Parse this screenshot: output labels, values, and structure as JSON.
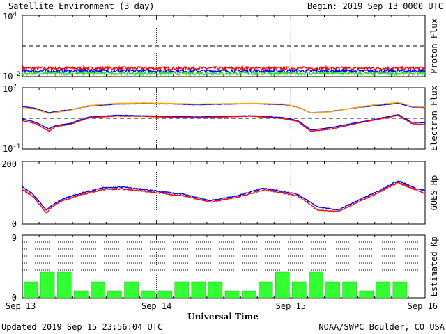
{
  "header": {
    "title": "Satellite Environment (3 day)",
    "begin": "Begin:  2019 Sep 13 0000 UTC"
  },
  "footer": {
    "updated": "Updated 2019 Sep 15 23:56:04 UTC",
    "credit": "NOAA/SWPC Boulder, CO USA"
  },
  "x_axis": {
    "title": "Universal Time",
    "tick_labels": [
      "Sep 13",
      "Sep 14",
      "Sep 15",
      "Sep 16"
    ],
    "range_days": [
      0,
      3
    ]
  },
  "colors": {
    "red": "#ff0000",
    "blue": "#0000ff",
    "green": "#22dd22",
    "orange": "#ffa500",
    "kp_bar": "#33ff33",
    "kp_bar_edge": "#22bb22"
  },
  "chart_data": [
    {
      "type": "line",
      "ylabel": "Proton Flux",
      "scale": "log",
      "ylim": [
        0.01,
        10000
      ],
      "tick_labels": [
        {
          "base": "10",
          "exp": "4"
        },
        {
          "base": "10",
          "exp": "-2"
        }
      ],
      "threshold": 10,
      "series": [
        {
          "color": "red",
          "level": 0.065,
          "noise": 0.15
        },
        {
          "color": "blue",
          "level": 0.035,
          "noise": 0.15
        },
        {
          "color": "green",
          "level": 0.02,
          "noise": 0.15
        }
      ]
    },
    {
      "type": "line",
      "ylabel": "Electron Flux",
      "scale": "log",
      "ylim": [
        0.1,
        10000000
      ],
      "tick_labels": [
        {
          "base": "10",
          "exp": "7"
        },
        {
          "base": "10",
          "exp": "-1"
        }
      ],
      "threshold": 1000,
      "x": [
        0,
        0.1,
        0.2,
        0.25,
        0.35,
        0.5,
        0.7,
        0.9,
        1.1,
        1.3,
        1.5,
        1.7,
        1.95,
        2.05,
        2.15,
        2.3,
        2.45,
        2.6,
        2.8,
        2.9,
        3.0
      ],
      "series": [
        {
          "color": "blue",
          "values": [
            35000,
            20000,
            5000,
            8000,
            12000,
            40000,
            70000,
            80000,
            75000,
            60000,
            70000,
            80000,
            60000,
            30000,
            5000,
            8000,
            20000,
            40000,
            90000,
            30000,
            25000
          ]
        },
        {
          "color": "orange",
          "values": [
            25000,
            15000,
            4000,
            6000,
            10000,
            45000,
            90000,
            100000,
            90000,
            70000,
            80000,
            90000,
            70000,
            30000,
            5000,
            7000,
            20000,
            50000,
            120000,
            35000,
            30000
          ]
        },
        {
          "color": "blue",
          "values": [
            800,
            300,
            40,
            120,
            200,
            1500,
            2500,
            2200,
            1800,
            1500,
            1800,
            2200,
            1200,
            500,
            30,
            60,
            200,
            600,
            3000,
            300,
            250
          ]
        },
        {
          "color": "red",
          "values": [
            500,
            200,
            20,
            90,
            150,
            1200,
            2000,
            1800,
            1400,
            1200,
            1500,
            1900,
            900,
            400,
            20,
            40,
            150,
            500,
            2500,
            200,
            150
          ]
        }
      ]
    },
    {
      "type": "line",
      "ylabel": "GOES Hp",
      "scale": "linear",
      "ylim": [
        0,
        200
      ],
      "tick_labels": [
        "200",
        "0"
      ],
      "x": [
        0,
        0.08,
        0.18,
        0.22,
        0.3,
        0.45,
        0.6,
        0.75,
        0.9,
        1.0,
        1.2,
        1.4,
        1.6,
        1.8,
        1.95,
        2.05,
        2.2,
        2.35,
        2.5,
        2.65,
        2.8,
        2.95,
        3.0
      ],
      "series": [
        {
          "color": "blue",
          "values": [
            120,
            95,
            45,
            60,
            80,
            100,
            115,
            118,
            110,
            105,
            95,
            75,
            90,
            115,
            102,
            95,
            55,
            45,
            75,
            105,
            138,
            110,
            108
          ]
        },
        {
          "color": "red",
          "values": [
            110,
            88,
            35,
            55,
            75,
            95,
            110,
            112,
            105,
            100,
            90,
            70,
            85,
            110,
            98,
            90,
            45,
            40,
            70,
            100,
            133,
            105,
            98
          ]
        }
      ]
    },
    {
      "type": "bar",
      "ylabel": "Estimated Kp",
      "ylim": [
        0,
        9
      ],
      "tick_labels": [
        "9",
        "0"
      ],
      "gridlines": [
        4,
        5,
        6,
        7,
        8
      ],
      "bin_hours": 3,
      "values": [
        2.3,
        3.7,
        3.7,
        1.0,
        2.3,
        1.0,
        2.3,
        1.0,
        1.0,
        2.3,
        2.3,
        2.3,
        1.0,
        1.0,
        2.3,
        3.7,
        2.3,
        3.7,
        2.3,
        2.3,
        1.0,
        2.3,
        2.3,
        0
      ]
    }
  ]
}
